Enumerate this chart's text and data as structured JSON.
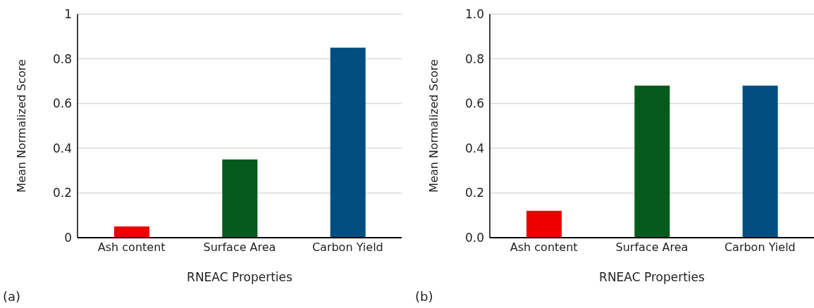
{
  "chart_data": [
    {
      "type": "bar",
      "xlabel": "RNEAC Properties",
      "ylabel": "Mean Normalized Score",
      "categories": [
        "Ash content",
        "Surface Area",
        "Carbon Yield"
      ],
      "values": [
        0.05,
        0.35,
        0.85
      ],
      "colors": [
        "#ee0000",
        "#045a1a",
        "#024e80"
      ],
      "ylim": [
        0,
        1
      ],
      "yticks": [
        0,
        0.2,
        0.4,
        0.6,
        0.8,
        1
      ],
      "grid": "y",
      "annotations": [
        "(a)"
      ]
    },
    {
      "type": "bar",
      "xlabel": "RNEAC Properties",
      "ylabel": "Mean Normalized Score",
      "categories": [
        "Ash content",
        "Surface Area",
        "Carbon Yield"
      ],
      "values": [
        0.12,
        0.68,
        0.68
      ],
      "colors": [
        "#ee0000",
        "#045a1a",
        "#024e80"
      ],
      "ylim": [
        0,
        1
      ],
      "yticks": [
        {
          "value": 0,
          "label": "0.0"
        },
        {
          "value": 0.2,
          "label": "0.2"
        },
        {
          "value": 0.4,
          "label": "0.4"
        },
        {
          "value": 0.6,
          "label": "0.6"
        },
        {
          "value": 0.8,
          "label": "0.8"
        },
        {
          "value": 1,
          "label": "1.0"
        }
      ],
      "grid": "y",
      "annotations": [
        "(b)"
      ]
    }
  ]
}
